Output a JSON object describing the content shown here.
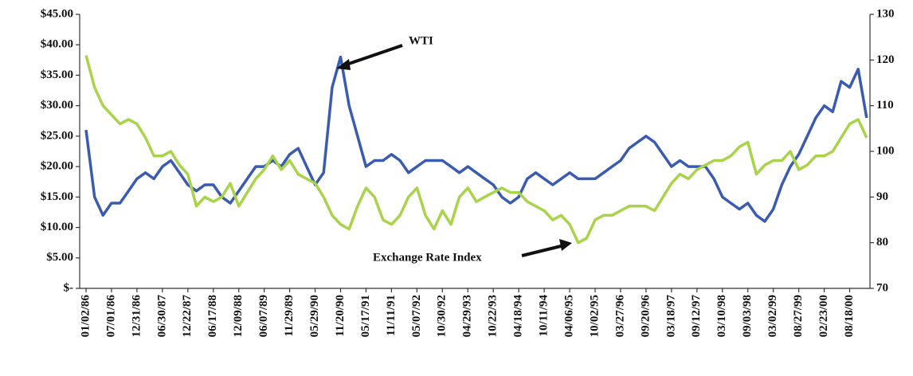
{
  "chart_data": {
    "type": "line",
    "annotations": [],
    "categories": [
      "01/02/86",
      null,
      null,
      "07/01/86",
      null,
      null,
      "12/31/86",
      null,
      null,
      "06/30/87",
      null,
      null,
      "12/22/87",
      null,
      null,
      "06/17/88",
      null,
      null,
      "12/09/88",
      null,
      null,
      "06/07/89",
      null,
      null,
      "11/29/89",
      null,
      null,
      "05/29/90",
      null,
      null,
      "11/20/90",
      null,
      null,
      "05/17/91",
      null,
      null,
      "11/11/91",
      null,
      null,
      "05/07/92",
      null,
      null,
      "10/30/92",
      null,
      null,
      "04/29/93",
      null,
      null,
      "10/22/93",
      null,
      null,
      "04/18/94",
      null,
      null,
      "10/11/94",
      null,
      null,
      "04/06/95",
      null,
      null,
      "10/02/95",
      null,
      null,
      "03/27/96",
      null,
      null,
      "09/20/96",
      null,
      null,
      "03/18/97",
      null,
      null,
      "09/12/97",
      null,
      null,
      "03/10/98",
      null,
      null,
      "09/03/98",
      null,
      null,
      "03/02/99",
      null,
      null,
      "08/27/99",
      null,
      null,
      "02/23/00",
      null,
      null,
      "08/18/00",
      null,
      null
    ],
    "series": [
      {
        "name": "WTI",
        "color": "#3a5bb0",
        "axis": "y",
        "values": [
          26,
          15,
          12,
          14,
          14,
          16,
          18,
          19,
          18,
          20,
          21,
          19,
          17,
          16,
          17,
          17,
          15,
          14,
          16,
          18,
          20,
          20,
          21,
          20,
          22,
          23,
          20,
          17,
          19,
          33,
          38,
          30,
          25,
          20,
          21,
          21,
          22,
          21,
          19,
          20,
          21,
          21,
          21,
          20,
          19,
          20,
          19,
          18,
          17,
          15,
          14,
          15,
          18,
          19,
          18,
          17,
          18,
          19,
          18,
          18,
          18,
          19,
          20,
          21,
          23,
          24,
          25,
          24,
          22,
          20,
          21,
          20,
          20,
          20,
          18,
          15,
          14,
          13,
          14,
          12,
          11,
          13,
          17,
          20,
          22,
          25,
          28,
          30,
          29,
          34,
          33,
          36,
          28
        ]
      },
      {
        "name": "Exchange Rate Index",
        "color": "#a9d44a",
        "axis": "y2",
        "values": [
          121,
          114,
          110,
          108,
          106,
          107,
          106,
          103,
          99,
          99,
          100,
          97,
          95,
          88,
          90,
          89,
          90,
          93,
          88,
          91,
          94,
          96,
          99,
          96,
          98,
          95,
          94,
          93,
          90,
          86,
          84,
          83,
          88,
          92,
          90,
          85,
          84,
          86,
          90,
          92,
          86,
          83,
          87,
          84,
          90,
          92,
          89,
          90,
          91,
          92,
          91,
          91,
          89,
          88,
          87,
          85,
          86,
          84,
          80,
          81,
          85,
          86,
          86,
          87,
          88,
          88,
          88,
          87,
          90,
          93,
          95,
          94,
          96,
          97,
          98,
          98,
          99,
          101,
          102,
          95,
          97,
          98,
          98,
          100,
          96,
          97,
          99,
          99,
          100,
          103,
          106,
          107,
          103
        ]
      }
    ],
    "ylim": [
      0,
      45
    ],
    "yticks": [
      {
        "value": 0,
        "label": "$-"
      },
      {
        "value": 5,
        "label": "$5.00"
      },
      {
        "value": 10,
        "label": "$10.00"
      },
      {
        "value": 15,
        "label": "$15.00"
      },
      {
        "value": 20,
        "label": "$20.00"
      },
      {
        "value": 25,
        "label": "$25.00"
      },
      {
        "value": 30,
        "label": "$30.00"
      },
      {
        "value": 35,
        "label": "$35.00"
      },
      {
        "value": 40,
        "label": "$40.00"
      },
      {
        "value": 45,
        "label": "$45.00"
      }
    ],
    "y2lim": [
      70,
      130
    ],
    "y2ticks": [
      70,
      80,
      90,
      100,
      110,
      120,
      130
    ],
    "grid": false
  }
}
